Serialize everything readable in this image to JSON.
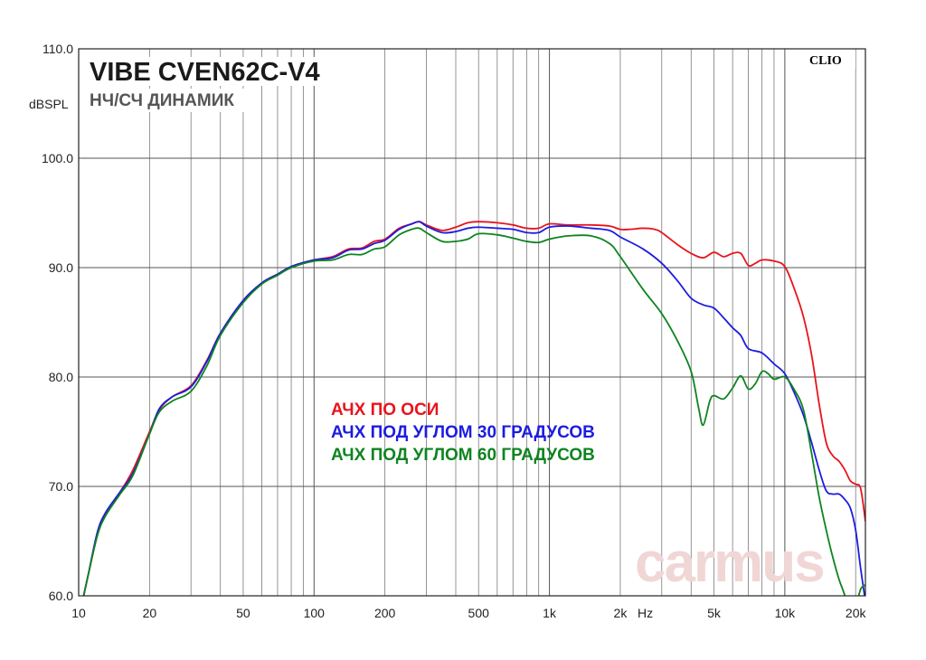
{
  "chart_data": {
    "type": "line",
    "title": "VIBE CVEN62C-V4",
    "subtitle": "НЧ/СЧ ДИНАМИК",
    "brand": "CLIO",
    "watermark": "carmus",
    "ylabel": "dBSPL",
    "xunit": "Hz",
    "xscale": "log",
    "xlim": [
      10,
      22000
    ],
    "ylim": [
      60,
      110
    ],
    "grid": true,
    "y_ticks": [
      "60.0",
      "70.0",
      "80.0",
      "90.0",
      "100.0",
      "110.0"
    ],
    "x_tick_labels": [
      {
        "value": 10,
        "label": "10"
      },
      {
        "value": 20,
        "label": "20"
      },
      {
        "value": 50,
        "label": "50"
      },
      {
        "value": 100,
        "label": "100"
      },
      {
        "value": 200,
        "label": "200"
      },
      {
        "value": 500,
        "label": "500"
      },
      {
        "value": 1000,
        "label": "1k"
      },
      {
        "value": 2000,
        "label": "2k"
      },
      {
        "value": 5000,
        "label": "5k"
      },
      {
        "value": 10000,
        "label": "10k"
      },
      {
        "value": 20000,
        "label": "20k"
      }
    ],
    "series": [
      {
        "name": "АЧХ ПО ОСИ",
        "color": "#e8141c",
        "points": [
          [
            10.5,
            60
          ],
          [
            11,
            62
          ],
          [
            12,
            65.5
          ],
          [
            13,
            67.5
          ],
          [
            15,
            69.5
          ],
          [
            17,
            71.5
          ],
          [
            20,
            75
          ],
          [
            22,
            77
          ],
          [
            25,
            78.2
          ],
          [
            30,
            79.2
          ],
          [
            35,
            81.5
          ],
          [
            40,
            84
          ],
          [
            50,
            87
          ],
          [
            60,
            88.6
          ],
          [
            70,
            89.4
          ],
          [
            80,
            90.1
          ],
          [
            100,
            90.7
          ],
          [
            120,
            91
          ],
          [
            140,
            91.7
          ],
          [
            160,
            91.8
          ],
          [
            180,
            92.4
          ],
          [
            200,
            92.6
          ],
          [
            230,
            93.6
          ],
          [
            260,
            94.0
          ],
          [
            280,
            94.2
          ],
          [
            300,
            93.9
          ],
          [
            350,
            93.4
          ],
          [
            400,
            93.7
          ],
          [
            450,
            94.1
          ],
          [
            500,
            94.2
          ],
          [
            600,
            94.1
          ],
          [
            700,
            93.9
          ],
          [
            800,
            93.6
          ],
          [
            900,
            93.6
          ],
          [
            1000,
            94.0
          ],
          [
            1200,
            93.9
          ],
          [
            1500,
            93.9
          ],
          [
            1800,
            93.8
          ],
          [
            2000,
            93.5
          ],
          [
            2200,
            93.5
          ],
          [
            2500,
            93.6
          ],
          [
            2800,
            93.5
          ],
          [
            3000,
            93.2
          ],
          [
            3500,
            92.1
          ],
          [
            4000,
            91.3
          ],
          [
            4500,
            90.9
          ],
          [
            5000,
            91.4
          ],
          [
            5500,
            91.0
          ],
          [
            6000,
            91.3
          ],
          [
            6500,
            91.3
          ],
          [
            7000,
            90.2
          ],
          [
            7500,
            90.4
          ],
          [
            8000,
            90.7
          ],
          [
            9000,
            90.6
          ],
          [
            10000,
            90.1
          ],
          [
            11000,
            88
          ],
          [
            12000,
            85.5
          ],
          [
            13000,
            82
          ],
          [
            14000,
            77.5
          ],
          [
            15000,
            74
          ],
          [
            16000,
            72.8
          ],
          [
            17000,
            72.3
          ],
          [
            18000,
            71.5
          ],
          [
            19000,
            70.5
          ],
          [
            20000,
            70.2
          ],
          [
            21000,
            69.8
          ],
          [
            22000,
            66.8
          ]
        ]
      },
      {
        "name": "АЧХ ПОД УГЛОМ 30 ГРАДУСОВ",
        "color": "#1c1ce0",
        "points": [
          [
            10.5,
            60
          ],
          [
            11,
            62
          ],
          [
            12,
            65.8
          ],
          [
            13,
            67.6
          ],
          [
            15,
            69.5
          ],
          [
            17,
            71.2
          ],
          [
            20,
            74.8
          ],
          [
            22,
            77.1
          ],
          [
            25,
            78.2
          ],
          [
            30,
            79.1
          ],
          [
            35,
            81.4
          ],
          [
            40,
            84
          ],
          [
            50,
            87
          ],
          [
            60,
            88.6
          ],
          [
            70,
            89.4
          ],
          [
            80,
            90.1
          ],
          [
            100,
            90.7
          ],
          [
            120,
            90.9
          ],
          [
            140,
            91.6
          ],
          [
            160,
            91.7
          ],
          [
            180,
            92.2
          ],
          [
            200,
            92.5
          ],
          [
            230,
            93.5
          ],
          [
            260,
            94.0
          ],
          [
            280,
            94.2
          ],
          [
            300,
            93.8
          ],
          [
            350,
            93.2
          ],
          [
            400,
            93.3
          ],
          [
            450,
            93.6
          ],
          [
            500,
            93.7
          ],
          [
            600,
            93.6
          ],
          [
            700,
            93.5
          ],
          [
            800,
            93.2
          ],
          [
            900,
            93.2
          ],
          [
            1000,
            93.7
          ],
          [
            1200,
            93.8
          ],
          [
            1500,
            93.6
          ],
          [
            1800,
            93.4
          ],
          [
            2000,
            92.8
          ],
          [
            2500,
            91.7
          ],
          [
            3000,
            90.4
          ],
          [
            3500,
            88.8
          ],
          [
            4000,
            87.2
          ],
          [
            4500,
            86.6
          ],
          [
            5000,
            86.3
          ],
          [
            5500,
            85.4
          ],
          [
            6000,
            84.5
          ],
          [
            6500,
            83.8
          ],
          [
            7000,
            82.6
          ],
          [
            8000,
            82.2
          ],
          [
            9000,
            81.2
          ],
          [
            10000,
            80.3
          ],
          [
            11000,
            78.5
          ],
          [
            12000,
            76.5
          ],
          [
            13000,
            74
          ],
          [
            14000,
            71.5
          ],
          [
            15000,
            69.6
          ],
          [
            16000,
            69.3
          ],
          [
            17000,
            69.3
          ],
          [
            18000,
            68.8
          ],
          [
            19000,
            68.0
          ],
          [
            20000,
            66
          ],
          [
            21000,
            62.5
          ],
          [
            22000,
            59.5
          ]
        ]
      },
      {
        "name": "АЧХ ПОД УГЛОМ 60 ГРАДУСОВ",
        "color": "#0e8420",
        "points": [
          [
            10.5,
            60
          ],
          [
            11,
            62
          ],
          [
            12,
            65.5
          ],
          [
            13,
            67.3
          ],
          [
            15,
            69.3
          ],
          [
            17,
            71
          ],
          [
            20,
            74.8
          ],
          [
            22,
            76.8
          ],
          [
            25,
            77.8
          ],
          [
            30,
            78.7
          ],
          [
            35,
            81
          ],
          [
            40,
            83.8
          ],
          [
            50,
            86.8
          ],
          [
            60,
            88.5
          ],
          [
            70,
            89.3
          ],
          [
            80,
            90
          ],
          [
            100,
            90.6
          ],
          [
            120,
            90.7
          ],
          [
            140,
            91.2
          ],
          [
            160,
            91.2
          ],
          [
            180,
            91.7
          ],
          [
            200,
            91.9
          ],
          [
            230,
            93
          ],
          [
            260,
            93.5
          ],
          [
            280,
            93.6
          ],
          [
            300,
            93.2
          ],
          [
            350,
            92.4
          ],
          [
            400,
            92.4
          ],
          [
            450,
            92.6
          ],
          [
            500,
            93.1
          ],
          [
            600,
            93
          ],
          [
            700,
            92.7
          ],
          [
            800,
            92.4
          ],
          [
            900,
            92.3
          ],
          [
            1000,
            92.6
          ],
          [
            1200,
            92.9
          ],
          [
            1500,
            92.9
          ],
          [
            1800,
            92.2
          ],
          [
            2000,
            91
          ],
          [
            2500,
            88
          ],
          [
            3000,
            85.8
          ],
          [
            3500,
            83.3
          ],
          [
            4000,
            80.5
          ],
          [
            4300,
            77.2
          ],
          [
            4500,
            75.6
          ],
          [
            4800,
            77.8
          ],
          [
            5000,
            78.3
          ],
          [
            5500,
            78
          ],
          [
            6000,
            79
          ],
          [
            6500,
            80.1
          ],
          [
            7000,
            78.9
          ],
          [
            7500,
            79.4
          ],
          [
            8000,
            80.5
          ],
          [
            8500,
            80.3
          ],
          [
            9000,
            79.8
          ],
          [
            10000,
            80
          ],
          [
            11000,
            78.8
          ],
          [
            12000,
            77
          ],
          [
            13000,
            73
          ],
          [
            14000,
            69
          ],
          [
            15000,
            66
          ],
          [
            16000,
            63.5
          ],
          [
            17000,
            61.5
          ],
          [
            18000,
            60
          ],
          [
            19000,
            58
          ],
          [
            20000,
            59
          ],
          [
            21000,
            60.6
          ],
          [
            22000,
            61
          ]
        ]
      }
    ]
  }
}
